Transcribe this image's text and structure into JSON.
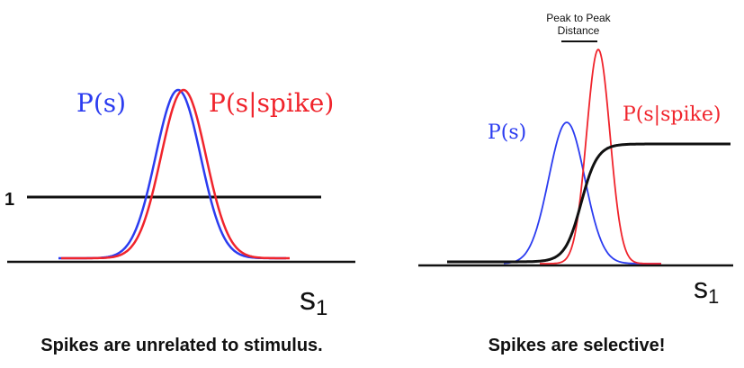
{
  "colors": {
    "prior": "#2b3cf0",
    "conditional": "#f0242c",
    "axis": "#111111",
    "sigmoid": "#111111"
  },
  "left_panel": {
    "prior_label": "P(s)",
    "conditional_label": "P(s|spike)",
    "one_label": "1",
    "axis_label_main": "s",
    "axis_label_sub": "1",
    "caption": "Spikes are unrelated to stimulus."
  },
  "right_panel": {
    "prior_label": "P(s)",
    "conditional_label": "P(s|spike)",
    "distance_label_line1": "Peak to Peak",
    "distance_label_line2": "Distance",
    "axis_label_main": "s",
    "axis_label_sub": "1",
    "caption": "Spikes are selective!"
  }
}
